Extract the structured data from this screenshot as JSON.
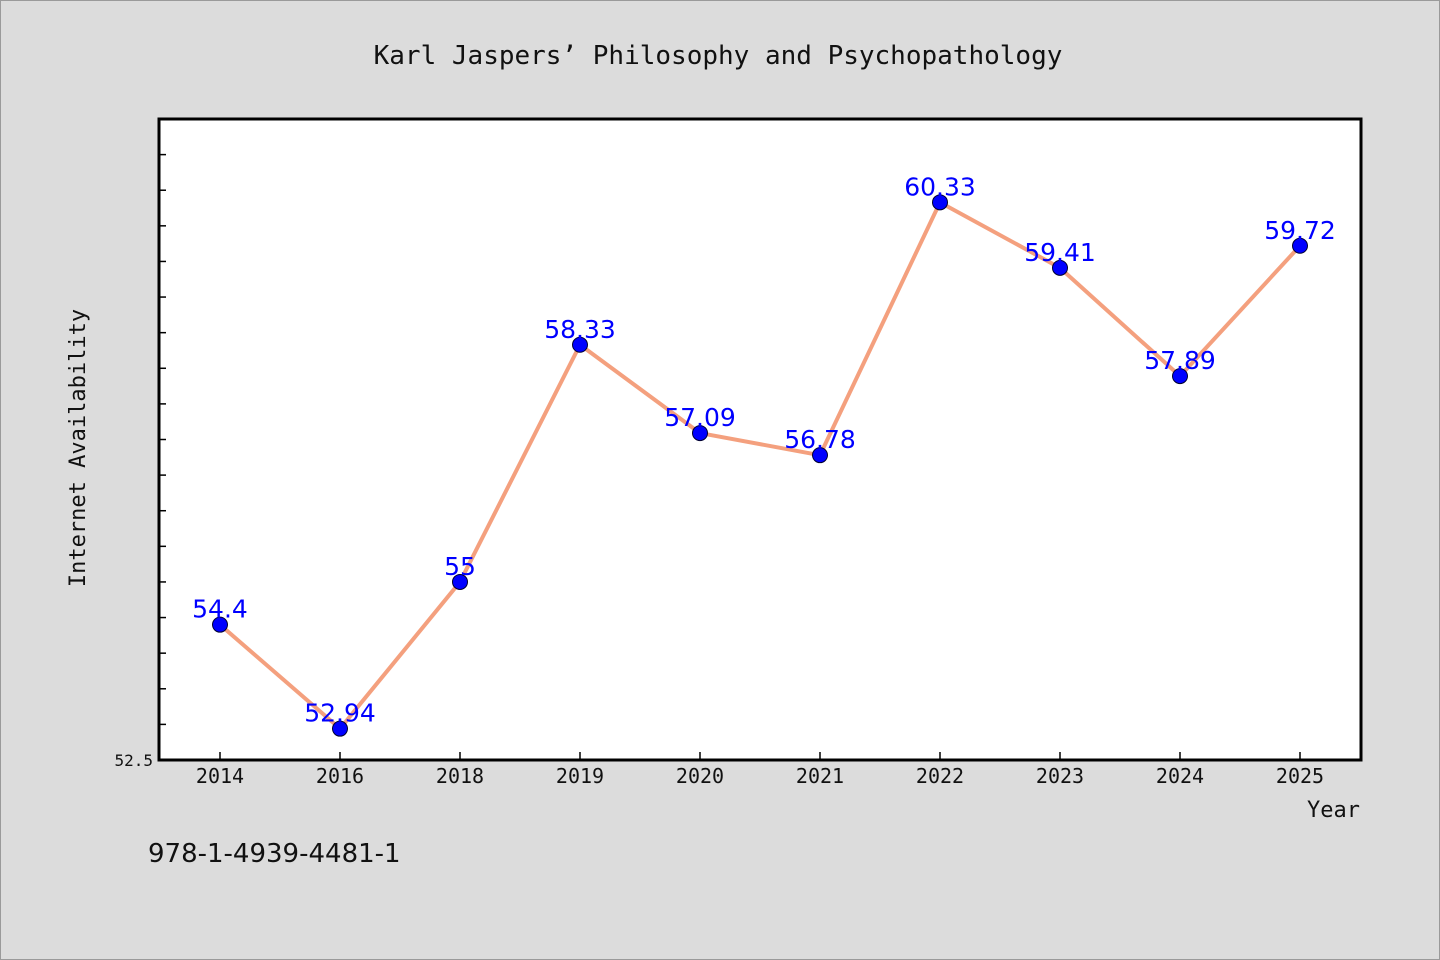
{
  "chart_data": {
    "type": "line",
    "title": "Karl Jaspers’ Philosophy and Psychopathology",
    "xlabel": "Year",
    "ylabel": "Internet Availability",
    "categories": [
      "2014",
      "2016",
      "2018",
      "2019",
      "2020",
      "2021",
      "2022",
      "2023",
      "2024",
      "2025"
    ],
    "series": [
      {
        "values": [
          54.4,
          52.94,
          55,
          58.33,
          57.09,
          56.78,
          60.33,
          59.41,
          57.89,
          59.72
        ],
        "labels": [
          "54.4",
          "52.94",
          "55",
          "58.33",
          "57.09",
          "56.78",
          "60.33",
          "59.41",
          "57.89",
          "59.72"
        ]
      }
    ],
    "ylim": [
      52.5,
      61.5
    ],
    "ytick_labels": [
      "52.5"
    ],
    "grid": false,
    "legend": "none",
    "line_color": "#f4a07e",
    "marker_color": "#0000ff",
    "label_color": "#0000ff"
  },
  "footer": {
    "isbn": "978-1-4939-4481-1"
  }
}
